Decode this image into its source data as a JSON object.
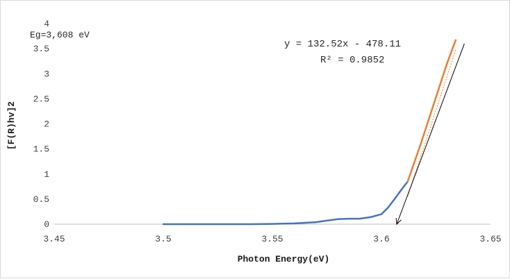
{
  "chart_data": {
    "type": "line",
    "title": "",
    "xlabel": "Photon Energy(eV)",
    "ylabel": "[F(R)hv]2",
    "xlim": [
      3.45,
      3.65
    ],
    "ylim": [
      0,
      4
    ],
    "x_ticks": [
      "3.45",
      "3.5",
      "3.55",
      "3.6",
      "3.65"
    ],
    "y_ticks": [
      "0",
      "0.5",
      "1",
      "1.5",
      "2",
      "2.5",
      "3",
      "3.5",
      "4"
    ],
    "grid": false,
    "legend": "none",
    "series": [
      {
        "color": "#4472C4",
        "x": [
          3.5,
          3.52,
          3.54,
          3.55,
          3.56,
          3.57,
          3.575,
          3.58,
          3.585,
          3.59,
          3.595,
          3.6,
          3.603,
          3.606,
          3.609,
          3.612
        ],
        "y": [
          0,
          0,
          0,
          0.005,
          0.015,
          0.04,
          0.07,
          0.1,
          0.11,
          0.11,
          0.14,
          0.2,
          0.33,
          0.5,
          0.68,
          0.85
        ]
      },
      {
        "color": "#ED7D31",
        "x": [
          3.612,
          3.618,
          3.624,
          3.63,
          3.634
        ],
        "y": [
          0.85,
          1.6,
          2.4,
          3.2,
          3.67
        ]
      }
    ],
    "trendline": {
      "color": "#ED7D31",
      "style": "dotted",
      "slope": 132.52,
      "intercept": -478.11,
      "x_range": [
        3.612,
        3.634
      ]
    },
    "tangent_line": {
      "color": "#000000",
      "x_start": 3.607,
      "y_start": 0,
      "x_end": 3.638,
      "y_end": 3.6
    },
    "annotations": {
      "equation": "y = 132.52x - 478.11",
      "r_squared": "R² = 0.9852",
      "band_gap": "Eg=3,608 eV"
    }
  }
}
